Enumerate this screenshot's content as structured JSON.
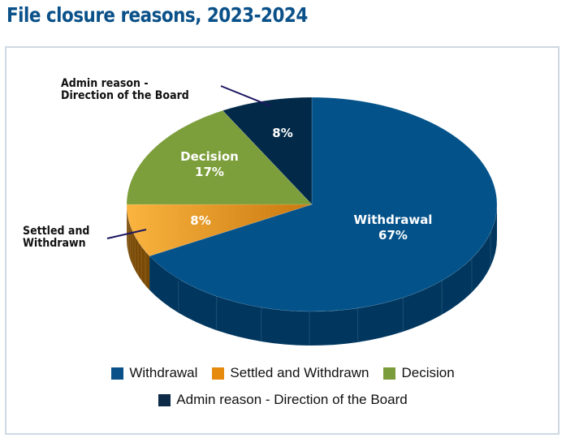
{
  "title": "File closure reasons, 2023-2024",
  "callouts": {
    "admin_line1": "Admin reason -",
    "admin_line2": "Direction of the Board",
    "settled_line1": "Settled and",
    "settled_line2": "Withdrawn"
  },
  "slice_labels": {
    "withdrawal_name": "Withdrawal",
    "withdrawal_pct": "67%",
    "settled_pct": "8%",
    "decision_name": "Decision",
    "decision_pct": "17%",
    "admin_pct": "8%"
  },
  "legend": [
    {
      "label": "Withdrawal",
      "color": "#0b5189"
    },
    {
      "label": "Settled and Withdrawn",
      "color": "#e58a0c"
    },
    {
      "label": "Decision",
      "color": "#7a9c3a"
    },
    {
      "label": "Admin reason - Direction of the Board",
      "color": "#0d2b48"
    }
  ],
  "colors": {
    "withdrawal_top": "#03528a",
    "withdrawal_side": "#01375f",
    "settled_top_light": "#f9b13e",
    "settled_top_dark": "#cf7d12",
    "settled_side": "#7a4a05",
    "decision_top": "#7c9e3b",
    "admin_top": "#022a48",
    "title": "#0b5189",
    "frame_border": "#cfd8e3"
  },
  "chart_data": {
    "type": "pie",
    "title": "File closure reasons, 2023-2024",
    "categories": [
      "Withdrawal",
      "Settled and Withdrawn",
      "Decision",
      "Admin reason - Direction of the Board"
    ],
    "values": [
      67,
      8,
      17,
      8
    ],
    "unit": "%",
    "style": "3d-pie",
    "legend_position": "bottom",
    "start_angle": "12 o'clock, clockwise"
  }
}
